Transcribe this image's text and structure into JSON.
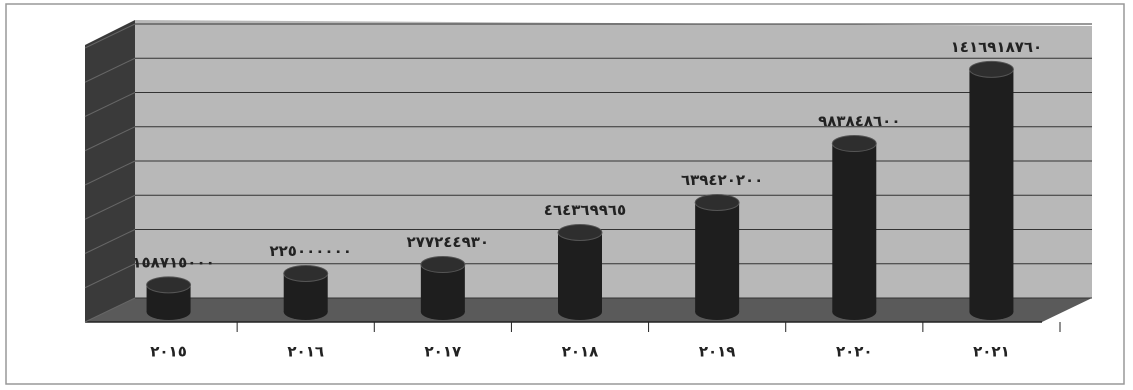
{
  "chart_data": {
    "type": "bar",
    "categories": [
      "٢٠١٥",
      "٢٠١٦",
      "٢٠١٧",
      "٢٠١٨",
      "٢٠١٩",
      "٢٠٢٠",
      "٢٠٢١"
    ],
    "values": [
      158715000,
      225000000,
      277244930,
      464369965,
      639420200,
      983848600,
      1416918760
    ],
    "value_labels": [
      "١٥٨٧١٥٠٠٠",
      "٢٢٥٠٠٠٠٠٠",
      "٢٧٧٢٤٤٩٣٠",
      "٤٦٤٣٦٩٩٦٥",
      "٦٣٩٤٢٠٢٠٠",
      "٩٨٣٨٤٨٦٠٠",
      "١٤١٦٩١٨٧٦٠"
    ],
    "color": "#1e1e1e",
    "ylim": [
      0,
      1600000000
    ],
    "yticks": [
      0,
      200000000,
      400000000,
      600000000,
      800000000,
      1000000000,
      1200000000,
      1400000000,
      1600000000
    ],
    "grid": true
  }
}
